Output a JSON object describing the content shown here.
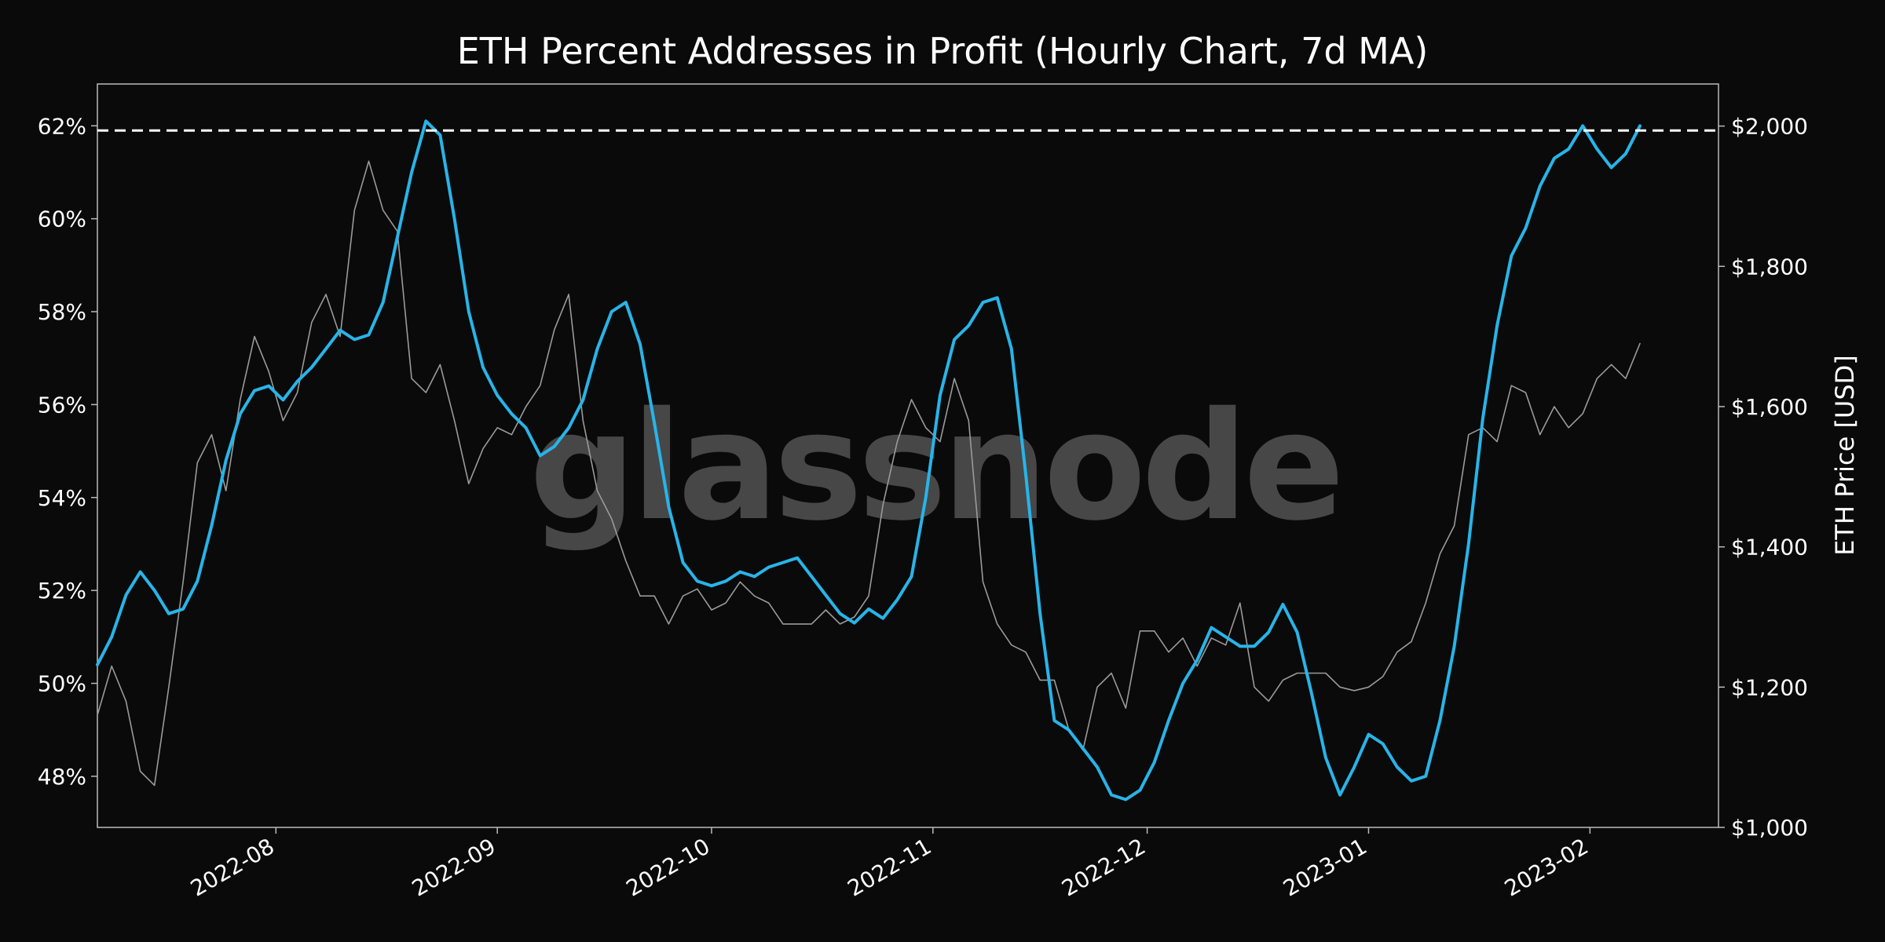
{
  "watermark": "glassnode",
  "colors": {
    "background": "#0a0a0a",
    "metric_line": "#28b4e8",
    "price_line": "#9a9a9a",
    "threshold_line": "#ffffff",
    "frame": "#bbbbbb"
  },
  "chart_data": {
    "type": "line",
    "title": "ETH Percent Addresses in Profit (Hourly Chart, 7d MA)",
    "xlabel": "",
    "ylabel_left": "",
    "ylabel_right": "ETH Price [USD]",
    "x_range": [
      "2022-07-07",
      "2023-02-19"
    ],
    "x_ticks": [
      "2022-08",
      "2022-09",
      "2022-10",
      "2022-11",
      "2022-12",
      "2023-01",
      "2023-02"
    ],
    "y_left_range": [
      46.9,
      62.9
    ],
    "y_left_ticks": [
      "48%",
      "50%",
      "52%",
      "54%",
      "56%",
      "58%",
      "60%",
      "62%"
    ],
    "y_left_tick_values": [
      48,
      50,
      52,
      54,
      56,
      58,
      60,
      62
    ],
    "y_right_range": [
      1000,
      2060
    ],
    "y_right_ticks": [
      "$1,000",
      "$1,200",
      "$1,400",
      "$1,600",
      "$1,800",
      "$2,000"
    ],
    "y_right_tick_values": [
      1000,
      1200,
      1400,
      1600,
      1800,
      2000
    ],
    "threshold": {
      "axis": "left",
      "value": 61.9,
      "style": "dashed"
    },
    "grid": false,
    "series": [
      {
        "axis": "left",
        "points": [
          [
            "2022-07-07",
            50.4
          ],
          [
            "2022-07-09",
            51.0
          ],
          [
            "2022-07-11",
            51.9
          ],
          [
            "2022-07-13",
            52.4
          ],
          [
            "2022-07-15",
            52.0
          ],
          [
            "2022-07-17",
            51.5
          ],
          [
            "2022-07-19",
            51.6
          ],
          [
            "2022-07-21",
            52.2
          ],
          [
            "2022-07-23",
            53.4
          ],
          [
            "2022-07-25",
            54.8
          ],
          [
            "2022-07-27",
            55.8
          ],
          [
            "2022-07-29",
            56.3
          ],
          [
            "2022-07-31",
            56.4
          ],
          [
            "2022-08-02",
            56.1
          ],
          [
            "2022-08-04",
            56.5
          ],
          [
            "2022-08-06",
            56.8
          ],
          [
            "2022-08-08",
            57.2
          ],
          [
            "2022-08-10",
            57.6
          ],
          [
            "2022-08-12",
            57.4
          ],
          [
            "2022-08-14",
            57.5
          ],
          [
            "2022-08-16",
            58.2
          ],
          [
            "2022-08-18",
            59.6
          ],
          [
            "2022-08-20",
            61.0
          ],
          [
            "2022-08-22",
            62.1
          ],
          [
            "2022-08-24",
            61.8
          ],
          [
            "2022-08-26",
            60.0
          ],
          [
            "2022-08-28",
            58.0
          ],
          [
            "2022-08-30",
            56.8
          ],
          [
            "2022-09-01",
            56.2
          ],
          [
            "2022-09-03",
            55.8
          ],
          [
            "2022-09-05",
            55.5
          ],
          [
            "2022-09-07",
            54.9
          ],
          [
            "2022-09-09",
            55.1
          ],
          [
            "2022-09-11",
            55.5
          ],
          [
            "2022-09-13",
            56.1
          ],
          [
            "2022-09-15",
            57.2
          ],
          [
            "2022-09-17",
            58.0
          ],
          [
            "2022-09-19",
            58.2
          ],
          [
            "2022-09-21",
            57.3
          ],
          [
            "2022-09-23",
            55.6
          ],
          [
            "2022-09-25",
            53.8
          ],
          [
            "2022-09-27",
            52.6
          ],
          [
            "2022-09-29",
            52.2
          ],
          [
            "2022-10-01",
            52.1
          ],
          [
            "2022-10-03",
            52.2
          ],
          [
            "2022-10-05",
            52.4
          ],
          [
            "2022-10-07",
            52.3
          ],
          [
            "2022-10-09",
            52.5
          ],
          [
            "2022-10-11",
            52.6
          ],
          [
            "2022-10-13",
            52.7
          ],
          [
            "2022-10-15",
            52.3
          ],
          [
            "2022-10-17",
            51.9
          ],
          [
            "2022-10-19",
            51.5
          ],
          [
            "2022-10-21",
            51.3
          ],
          [
            "2022-10-23",
            51.6
          ],
          [
            "2022-10-25",
            51.4
          ],
          [
            "2022-10-27",
            51.8
          ],
          [
            "2022-10-29",
            52.3
          ],
          [
            "2022-10-31",
            54.0
          ],
          [
            "2022-11-02",
            56.2
          ],
          [
            "2022-11-04",
            57.4
          ],
          [
            "2022-11-06",
            57.7
          ],
          [
            "2022-11-08",
            58.2
          ],
          [
            "2022-11-10",
            58.3
          ],
          [
            "2022-11-12",
            57.2
          ],
          [
            "2022-11-14",
            54.5
          ],
          [
            "2022-11-16",
            51.5
          ],
          [
            "2022-11-18",
            49.2
          ],
          [
            "2022-11-20",
            49.0
          ],
          [
            "2022-11-22",
            48.6
          ],
          [
            "2022-11-24",
            48.2
          ],
          [
            "2022-11-26",
            47.6
          ],
          [
            "2022-11-28",
            47.5
          ],
          [
            "2022-11-30",
            47.7
          ],
          [
            "2022-12-02",
            48.3
          ],
          [
            "2022-12-04",
            49.2
          ],
          [
            "2022-12-06",
            50.0
          ],
          [
            "2022-12-08",
            50.5
          ],
          [
            "2022-12-10",
            51.2
          ],
          [
            "2022-12-12",
            51.0
          ],
          [
            "2022-12-14",
            50.8
          ],
          [
            "2022-12-16",
            50.8
          ],
          [
            "2022-12-18",
            51.1
          ],
          [
            "2022-12-20",
            51.7
          ],
          [
            "2022-12-22",
            51.1
          ],
          [
            "2022-12-24",
            49.8
          ],
          [
            "2022-12-26",
            48.4
          ],
          [
            "2022-12-28",
            47.6
          ],
          [
            "2022-12-30",
            48.2
          ],
          [
            "2023-01-01",
            48.9
          ],
          [
            "2023-01-03",
            48.7
          ],
          [
            "2023-01-05",
            48.2
          ],
          [
            "2023-01-07",
            47.9
          ],
          [
            "2023-01-09",
            48.0
          ],
          [
            "2023-01-11",
            49.2
          ],
          [
            "2023-01-13",
            50.8
          ],
          [
            "2023-01-15",
            53.0
          ],
          [
            "2023-01-17",
            55.7
          ],
          [
            "2023-01-19",
            57.7
          ],
          [
            "2023-01-21",
            59.2
          ],
          [
            "2023-01-23",
            59.8
          ],
          [
            "2023-01-25",
            60.7
          ],
          [
            "2023-01-27",
            61.3
          ],
          [
            "2023-01-29",
            61.5
          ],
          [
            "2023-01-31",
            62.0
          ],
          [
            "2023-02-02",
            61.5
          ],
          [
            "2023-02-04",
            61.1
          ],
          [
            "2023-02-06",
            61.4
          ],
          [
            "2023-02-08",
            62.0
          ]
        ]
      },
      {
        "axis": "right",
        "points": [
          [
            "2022-07-07",
            1160
          ],
          [
            "2022-07-09",
            1230
          ],
          [
            "2022-07-11",
            1180
          ],
          [
            "2022-07-13",
            1080
          ],
          [
            "2022-07-15",
            1060
          ],
          [
            "2022-07-17",
            1200
          ],
          [
            "2022-07-19",
            1350
          ],
          [
            "2022-07-21",
            1520
          ],
          [
            "2022-07-23",
            1560
          ],
          [
            "2022-07-25",
            1480
          ],
          [
            "2022-07-27",
            1610
          ],
          [
            "2022-07-29",
            1700
          ],
          [
            "2022-07-31",
            1650
          ],
          [
            "2022-08-02",
            1580
          ],
          [
            "2022-08-04",
            1620
          ],
          [
            "2022-08-06",
            1720
          ],
          [
            "2022-08-08",
            1760
          ],
          [
            "2022-08-10",
            1700
          ],
          [
            "2022-08-12",
            1880
          ],
          [
            "2022-08-14",
            1950
          ],
          [
            "2022-08-16",
            1880
          ],
          [
            "2022-08-18",
            1850
          ],
          [
            "2022-08-20",
            1640
          ],
          [
            "2022-08-22",
            1620
          ],
          [
            "2022-08-24",
            1660
          ],
          [
            "2022-08-26",
            1580
          ],
          [
            "2022-08-28",
            1490
          ],
          [
            "2022-08-30",
            1540
          ],
          [
            "2022-09-01",
            1570
          ],
          [
            "2022-09-03",
            1560
          ],
          [
            "2022-09-05",
            1600
          ],
          [
            "2022-09-07",
            1630
          ],
          [
            "2022-09-09",
            1710
          ],
          [
            "2022-09-11",
            1760
          ],
          [
            "2022-09-13",
            1580
          ],
          [
            "2022-09-15",
            1480
          ],
          [
            "2022-09-17",
            1440
          ],
          [
            "2022-09-19",
            1380
          ],
          [
            "2022-09-21",
            1330
          ],
          [
            "2022-09-23",
            1330
          ],
          [
            "2022-09-25",
            1290
          ],
          [
            "2022-09-27",
            1330
          ],
          [
            "2022-09-29",
            1340
          ],
          [
            "2022-10-01",
            1310
          ],
          [
            "2022-10-03",
            1320
          ],
          [
            "2022-10-05",
            1350
          ],
          [
            "2022-10-07",
            1330
          ],
          [
            "2022-10-09",
            1320
          ],
          [
            "2022-10-11",
            1290
          ],
          [
            "2022-10-13",
            1290
          ],
          [
            "2022-10-15",
            1290
          ],
          [
            "2022-10-17",
            1310
          ],
          [
            "2022-10-19",
            1290
          ],
          [
            "2022-10-21",
            1300
          ],
          [
            "2022-10-23",
            1330
          ],
          [
            "2022-10-25",
            1460
          ],
          [
            "2022-10-27",
            1550
          ],
          [
            "2022-10-29",
            1610
          ],
          [
            "2022-10-31",
            1570
          ],
          [
            "2022-11-02",
            1550
          ],
          [
            "2022-11-04",
            1640
          ],
          [
            "2022-11-06",
            1580
          ],
          [
            "2022-11-08",
            1350
          ],
          [
            "2022-11-10",
            1290
          ],
          [
            "2022-11-12",
            1260
          ],
          [
            "2022-11-14",
            1250
          ],
          [
            "2022-11-16",
            1210
          ],
          [
            "2022-11-18",
            1210
          ],
          [
            "2022-11-20",
            1140
          ],
          [
            "2022-11-22",
            1110
          ],
          [
            "2022-11-24",
            1200
          ],
          [
            "2022-11-26",
            1220
          ],
          [
            "2022-11-28",
            1170
          ],
          [
            "2022-11-30",
            1280
          ],
          [
            "2022-12-02",
            1280
          ],
          [
            "2022-12-04",
            1250
          ],
          [
            "2022-12-06",
            1270
          ],
          [
            "2022-12-08",
            1230
          ],
          [
            "2022-12-10",
            1270
          ],
          [
            "2022-12-12",
            1260
          ],
          [
            "2022-12-14",
            1320
          ],
          [
            "2022-12-16",
            1200
          ],
          [
            "2022-12-18",
            1180
          ],
          [
            "2022-12-20",
            1210
          ],
          [
            "2022-12-22",
            1220
          ],
          [
            "2022-12-24",
            1220
          ],
          [
            "2022-12-26",
            1220
          ],
          [
            "2022-12-28",
            1200
          ],
          [
            "2022-12-30",
            1195
          ],
          [
            "2023-01-01",
            1200
          ],
          [
            "2023-01-03",
            1215
          ],
          [
            "2023-01-05",
            1250
          ],
          [
            "2023-01-07",
            1265
          ],
          [
            "2023-01-09",
            1320
          ],
          [
            "2023-01-11",
            1390
          ],
          [
            "2023-01-13",
            1430
          ],
          [
            "2023-01-15",
            1560
          ],
          [
            "2023-01-17",
            1570
          ],
          [
            "2023-01-19",
            1550
          ],
          [
            "2023-01-21",
            1630
          ],
          [
            "2023-01-23",
            1620
          ],
          [
            "2023-01-25",
            1560
          ],
          [
            "2023-01-27",
            1600
          ],
          [
            "2023-01-29",
            1570
          ],
          [
            "2023-01-31",
            1590
          ],
          [
            "2023-02-02",
            1640
          ],
          [
            "2023-02-04",
            1660
          ],
          [
            "2023-02-06",
            1640
          ],
          [
            "2023-02-08",
            1690
          ]
        ]
      }
    ]
  }
}
